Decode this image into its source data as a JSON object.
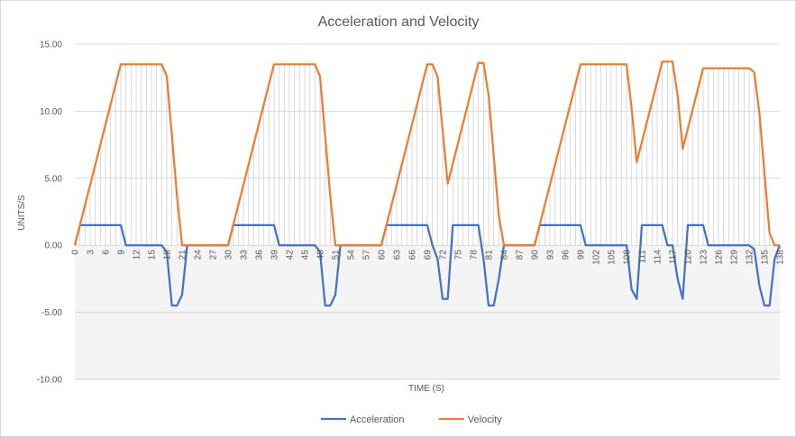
{
  "chart_data": {
    "type": "line",
    "title": "Acceleration and Velocity",
    "xlabel": "TIME (S)",
    "ylabel": "UNITS/S",
    "ylim": [
      -10,
      15
    ],
    "xlim": [
      0,
      138
    ],
    "y_ticks": [
      "-10.00",
      "-5.00",
      "0.00",
      "5.00",
      "10.00",
      "15.00"
    ],
    "x_ticks": [
      0,
      3,
      6,
      9,
      12,
      15,
      18,
      21,
      24,
      27,
      30,
      33,
      36,
      39,
      42,
      45,
      48,
      51,
      54,
      57,
      60,
      63,
      66,
      69,
      72,
      75,
      78,
      81,
      84,
      87,
      90,
      93,
      96,
      99,
      102,
      105,
      108,
      111,
      114,
      117,
      120,
      123,
      126,
      129,
      132,
      135,
      138
    ],
    "grid": "horizontal",
    "legend": "bottom",
    "series": [
      {
        "name": "Acceleration",
        "color": "#4472c4",
        "points": [
          [
            0,
            0
          ],
          [
            1,
            1.5
          ],
          [
            2,
            1.5
          ],
          [
            9,
            1.5
          ],
          [
            10,
            0
          ],
          [
            17,
            0
          ],
          [
            18,
            -0.5
          ],
          [
            19,
            -4.5
          ],
          [
            20,
            -4.5
          ],
          [
            21,
            -3.7
          ],
          [
            22,
            0
          ],
          [
            30,
            0
          ],
          [
            31,
            1.5
          ],
          [
            39,
            1.5
          ],
          [
            40,
            0
          ],
          [
            47,
            0
          ],
          [
            48,
            -0.5
          ],
          [
            49,
            -4.5
          ],
          [
            50,
            -4.5
          ],
          [
            51,
            -3.7
          ],
          [
            52,
            0
          ],
          [
            60,
            0
          ],
          [
            61,
            1.5
          ],
          [
            69,
            1.5
          ],
          [
            70,
            0
          ],
          [
            71,
            -1
          ],
          [
            72,
            -4
          ],
          [
            73,
            -4
          ],
          [
            74,
            1.5
          ],
          [
            79,
            1.5
          ],
          [
            80,
            -1
          ],
          [
            81,
            -4.5
          ],
          [
            82,
            -4.5
          ],
          [
            83,
            -2.5
          ],
          [
            84,
            0
          ],
          [
            90,
            0
          ],
          [
            91,
            1.5
          ],
          [
            99,
            1.5
          ],
          [
            100,
            0
          ],
          [
            108,
            0
          ],
          [
            109,
            -3.3
          ],
          [
            110,
            -4
          ],
          [
            111,
            1.5
          ],
          [
            115,
            1.5
          ],
          [
            116,
            0
          ],
          [
            117,
            0
          ],
          [
            118,
            -2.5
          ],
          [
            119,
            -4
          ],
          [
            120,
            1.5
          ],
          [
            123,
            1.5
          ],
          [
            124,
            0
          ],
          [
            132,
            0
          ],
          [
            133,
            -0.3
          ],
          [
            134,
            -3
          ],
          [
            135,
            -4.5
          ],
          [
            136,
            -4.5
          ],
          [
            137,
            -1
          ],
          [
            138,
            0
          ]
        ]
      },
      {
        "name": "Velocity",
        "color": "#ed7d31",
        "points": [
          [
            0,
            0
          ],
          [
            1,
            1.5
          ],
          [
            2,
            3
          ],
          [
            3,
            4.5
          ],
          [
            4,
            6
          ],
          [
            5,
            7.5
          ],
          [
            6,
            9
          ],
          [
            7,
            10.5
          ],
          [
            8,
            12
          ],
          [
            9,
            13.5
          ],
          [
            17,
            13.5
          ],
          [
            18,
            12.6
          ],
          [
            19,
            8.2
          ],
          [
            20,
            3.7
          ],
          [
            21,
            0
          ],
          [
            30,
            0
          ],
          [
            31,
            1.5
          ],
          [
            32,
            3
          ],
          [
            33,
            4.5
          ],
          [
            34,
            6
          ],
          [
            35,
            7.5
          ],
          [
            36,
            9
          ],
          [
            37,
            10.5
          ],
          [
            38,
            12
          ],
          [
            39,
            13.5
          ],
          [
            47,
            13.5
          ],
          [
            48,
            12.6
          ],
          [
            49,
            8.2
          ],
          [
            50,
            3.7
          ],
          [
            51,
            0
          ],
          [
            60,
            0
          ],
          [
            61,
            1.5
          ],
          [
            62,
            3
          ],
          [
            63,
            4.5
          ],
          [
            64,
            6
          ],
          [
            65,
            7.5
          ],
          [
            66,
            9
          ],
          [
            67,
            10.5
          ],
          [
            68,
            12
          ],
          [
            69,
            13.5
          ],
          [
            70,
            13.5
          ],
          [
            71,
            12.6
          ],
          [
            72,
            8.6
          ],
          [
            73,
            4.6
          ],
          [
            74,
            6.1
          ],
          [
            75,
            7.6
          ],
          [
            76,
            9.1
          ],
          [
            77,
            10.6
          ],
          [
            78,
            12.1
          ],
          [
            79,
            13.6
          ],
          [
            80,
            13.6
          ],
          [
            81,
            11.2
          ],
          [
            82,
            6.7
          ],
          [
            83,
            2.2
          ],
          [
            84,
            0
          ],
          [
            90,
            0
          ],
          [
            91,
            1.5
          ],
          [
            92,
            3
          ],
          [
            93,
            4.5
          ],
          [
            94,
            6
          ],
          [
            95,
            7.5
          ],
          [
            96,
            9
          ],
          [
            97,
            10.5
          ],
          [
            98,
            12
          ],
          [
            99,
            13.5
          ],
          [
            108,
            13.5
          ],
          [
            109,
            10.2
          ],
          [
            110,
            6.2
          ],
          [
            111,
            7.7
          ],
          [
            112,
            9.2
          ],
          [
            113,
            10.7
          ],
          [
            114,
            12.2
          ],
          [
            115,
            13.7
          ],
          [
            116,
            13.7
          ],
          [
            117,
            13.7
          ],
          [
            118,
            11.2
          ],
          [
            119,
            7.2
          ],
          [
            120,
            8.7
          ],
          [
            121,
            10.2
          ],
          [
            122,
            11.7
          ],
          [
            123,
            13.2
          ],
          [
            132,
            13.2
          ],
          [
            133,
            12.9
          ],
          [
            134,
            9.9
          ],
          [
            135,
            5.4
          ],
          [
            136,
            0.9
          ],
          [
            137,
            0
          ],
          [
            138,
            0
          ]
        ]
      }
    ]
  }
}
